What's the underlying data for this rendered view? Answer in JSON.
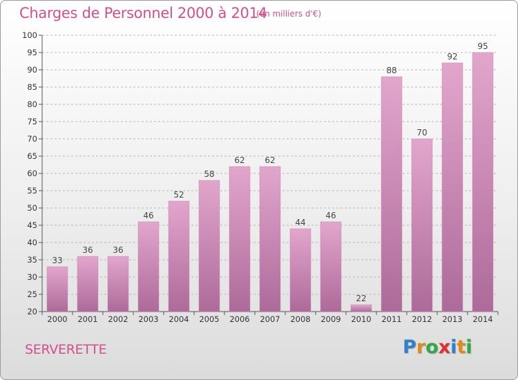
{
  "header": {
    "title": "Charges de Personnel 2000 à 2014",
    "unit": "(en milliers d'€)"
  },
  "footer": {
    "commune": "SERVERETTE",
    "logo": [
      "P",
      "r",
      "o",
      "x",
      "i",
      "t",
      "i"
    ],
    "logo_colors": [
      "#2f7fd0",
      "#e08a1a",
      "#2fa84a",
      "#e0302f",
      "#2f7fd0",
      "#e08a1a",
      "#2fa84a"
    ]
  },
  "colors": {
    "title": "#d0508e",
    "bar_top": "#e2a6cc",
    "bar_bottom": "#ad6a9a",
    "grid": "#b8b8b8"
  },
  "chart_data": {
    "type": "bar",
    "categories": [
      "2000",
      "2001",
      "2002",
      "2003",
      "2004",
      "2005",
      "2006",
      "2007",
      "2008",
      "2009",
      "2010",
      "2011",
      "2012",
      "2013",
      "2014"
    ],
    "values": [
      33,
      36,
      36,
      46,
      52,
      58,
      62,
      62,
      44,
      46,
      22,
      88,
      70,
      92,
      95
    ],
    "ylim": [
      20,
      100
    ],
    "yticks": [
      20,
      25,
      30,
      35,
      40,
      45,
      50,
      55,
      60,
      65,
      70,
      75,
      80,
      85,
      90,
      95,
      100
    ],
    "grid": true,
    "legend": "none"
  }
}
